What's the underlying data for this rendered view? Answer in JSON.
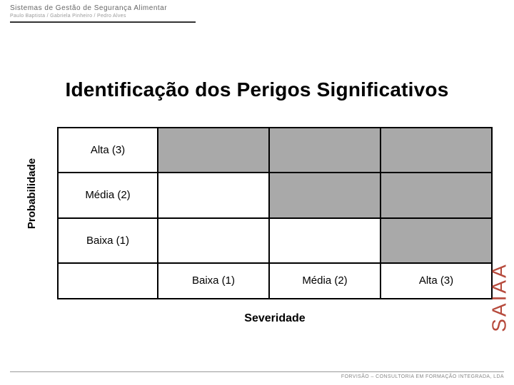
{
  "header": {
    "title": "Sistemas de Gestão de Segurança Alimentar",
    "subtitle": "Paulo Baptista / Gabriela Pinheiro / Pedro Alves"
  },
  "main_title": "Identificação dos Perigos Significativos",
  "matrix": {
    "ylabel": "Probabilidade",
    "xlabel": "Severidade",
    "rows": [
      {
        "label": "Alta (3)",
        "cells": [
          true,
          true,
          true
        ]
      },
      {
        "label": "Média (2)",
        "cells": [
          false,
          true,
          true
        ]
      },
      {
        "label": "Baixa (1)",
        "cells": [
          false,
          false,
          true
        ]
      }
    ],
    "cols": [
      "Baixa (1)",
      "Média (2)",
      "Alta (3)"
    ],
    "shaded_color": "#a9a9a9",
    "unshaded_color": "#ffffff",
    "border_color": "#000000",
    "label_fontsize": 15,
    "axis_label_fontsize": 16
  },
  "brand": {
    "text": "SAIAA",
    "color": "#b64a3c"
  },
  "footer": {
    "text": "FORVISÃO – CONSULTORIA EM FORMAÇÃO INTEGRADA, LDA"
  },
  "colors": {
    "page_bg": "#ffffff",
    "text": "#000000",
    "header_text": "#666666",
    "header_sub": "#999999",
    "footer_text": "#888888"
  }
}
